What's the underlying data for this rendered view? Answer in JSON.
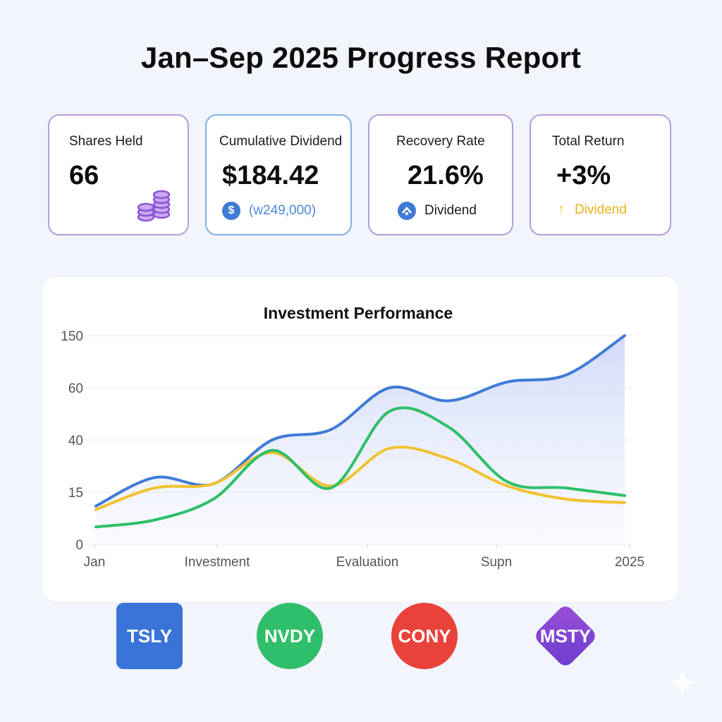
{
  "page": {
    "title": "Jan–Sep 2025 Progress Report"
  },
  "cards": [
    {
      "label": "Shares Held",
      "value": "66",
      "icon": "coins-icon"
    },
    {
      "label": "Cumulative Dividend",
      "value": "$184.42",
      "sub_text": "(w249,000)",
      "sub_icon": "dollar-icon",
      "sub_icon_glyph": "$"
    },
    {
      "label": "Recovery Rate",
      "value": "21.6%",
      "sub_text": "Dividend",
      "sub_icon": "up-circle-icon"
    },
    {
      "label": "Total Return",
      "value": "+3%",
      "sub_text": "Dividend",
      "sub_icon": "up-arrow-icon",
      "sub_icon_glyph": "↑"
    }
  ],
  "colors": {
    "blue": "#3f7bd6",
    "green": "#2fbf6a",
    "yellow": "#f2c230",
    "purple": "#9b6be0",
    "red": "#e8423a",
    "grid": "#eceef3",
    "axis_text": "#555555"
  },
  "chart_data": {
    "type": "line",
    "title": "Investment Performance",
    "y_ticks": [
      0,
      15,
      40,
      60,
      150
    ],
    "x_labels": [
      "Jan",
      "Investment",
      "Evaluation",
      "Supn",
      "2025"
    ],
    "x": [
      0,
      1,
      2,
      3,
      4,
      5,
      6,
      7,
      8,
      9
    ],
    "series": [
      {
        "name": "blue",
        "color": "#3f7bd6",
        "values": [
          11,
          22,
          19,
          40,
          44,
          60,
          55,
          70,
          82,
          150
        ],
        "area": true
      },
      {
        "name": "yellow",
        "color": "#f2c230",
        "values": [
          10,
          17,
          19,
          34,
          18,
          36,
          31,
          18,
          13,
          12
        ]
      },
      {
        "name": "green",
        "color": "#2fbf6a",
        "values": [
          5,
          7,
          13,
          35,
          17,
          51,
          45,
          20,
          17,
          14
        ]
      }
    ],
    "grid": true,
    "legend": "none"
  },
  "tickers": [
    {
      "label": "TSLY",
      "color": "#3a74d8",
      "shape": "rounded-square"
    },
    {
      "label": "NVDY",
      "color": "#2fbf6a",
      "shape": "circle"
    },
    {
      "label": "CONY",
      "color": "#e8423a",
      "shape": "circle"
    },
    {
      "label": "MSTY",
      "color": "#8a47d4",
      "shape": "diamond"
    }
  ]
}
